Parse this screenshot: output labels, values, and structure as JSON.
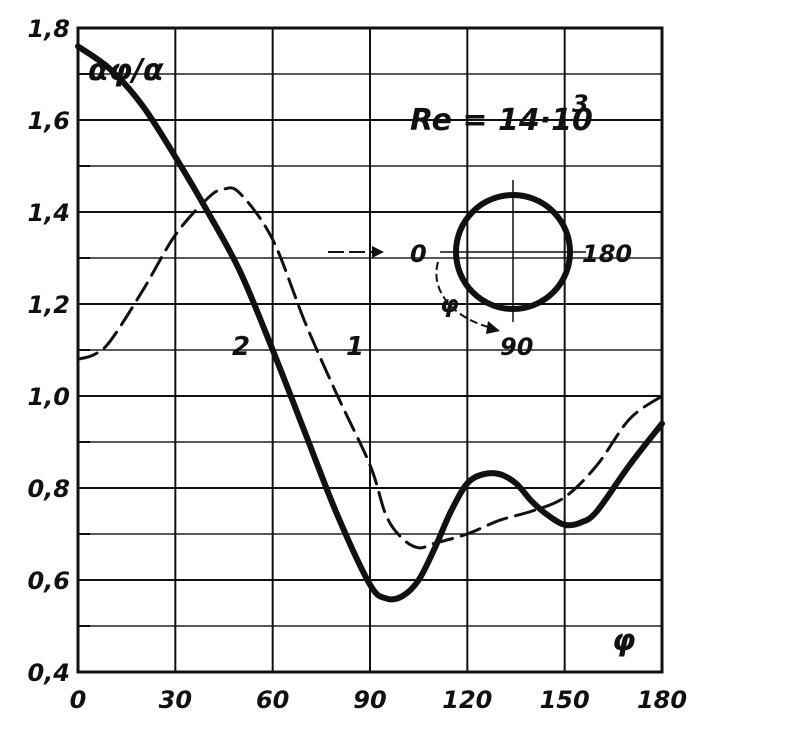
{
  "chart_data": {
    "type": "line",
    "title": "",
    "ylabel": "αφ/α",
    "xlabel": "φ",
    "xlim": [
      0,
      180
    ],
    "ylim": [
      0.4,
      1.8
    ],
    "x_ticks": [
      0,
      30,
      60,
      90,
      120,
      150,
      180
    ],
    "x_tick_labels": [
      "0",
      "30",
      "60",
      "90",
      "120",
      "150",
      "180"
    ],
    "y_ticks": [
      0.4,
      0.6,
      0.8,
      1.0,
      1.2,
      1.4,
      1.6,
      1.8
    ],
    "y_tick_labels": [
      "0,4",
      "0,6",
      "0,8",
      "1,0",
      "1,2",
      "1,4",
      "1,6",
      "1,8"
    ],
    "grid": true,
    "annotation": "Re = 14·10",
    "annotation_exp": "3",
    "inset": {
      "type": "circle-diagram",
      "label_left": "0",
      "label_right": "180",
      "label_bottom": "90",
      "label_angle": "φ"
    },
    "series": [
      {
        "name": "1",
        "style": "dashed",
        "x": [
          0,
          5,
          10,
          20,
          30,
          40,
          45,
          50,
          60,
          70,
          80,
          90,
          95,
          100,
          105,
          110,
          120,
          130,
          140,
          150,
          160,
          170,
          180
        ],
        "y": [
          1.08,
          1.09,
          1.12,
          1.23,
          1.35,
          1.43,
          1.45,
          1.44,
          1.34,
          1.16,
          1.0,
          0.85,
          0.74,
          0.69,
          0.67,
          0.68,
          0.7,
          0.73,
          0.75,
          0.78,
          0.85,
          0.95,
          1.0
        ]
      },
      {
        "name": "2",
        "style": "solid",
        "x": [
          0,
          10,
          20,
          30,
          40,
          50,
          60,
          70,
          80,
          90,
          95,
          100,
          105,
          110,
          115,
          120,
          125,
          130,
          135,
          140,
          145,
          150,
          155,
          160,
          170,
          180
        ],
        "y": [
          1.76,
          1.71,
          1.63,
          1.52,
          1.4,
          1.27,
          1.1,
          0.92,
          0.74,
          0.59,
          0.56,
          0.565,
          0.6,
          0.67,
          0.75,
          0.81,
          0.83,
          0.83,
          0.81,
          0.77,
          0.74,
          0.72,
          0.725,
          0.75,
          0.85,
          0.94
        ]
      }
    ]
  }
}
